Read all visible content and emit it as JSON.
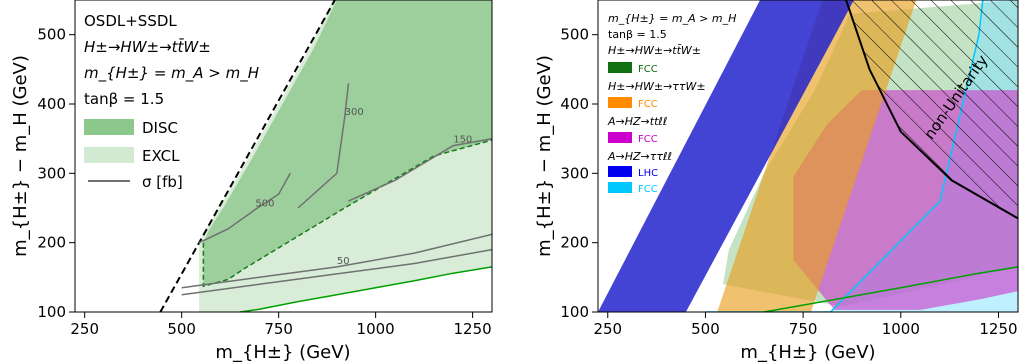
{
  "chart_data": [
    {
      "type": "area",
      "xlabel": "m_{H±} (GeV)",
      "ylabel": "m_{H±} − m_H (GeV)",
      "xlim": [
        225,
        1300
      ],
      "ylim": [
        100,
        550
      ],
      "xticks": [
        250,
        500,
        750,
        1000,
        1250
      ],
      "yticks": [
        100,
        200,
        300,
        400,
        500
      ],
      "legend_position": "top-left",
      "legend_text": [
        "OSDL+SSDL",
        "H±→HW±→tt̄W±",
        "m_{H±} = m_A > m_H",
        "tanβ = 1.5"
      ],
      "legend": [
        {
          "name": "DISC",
          "color": "#8cc88c"
        },
        {
          "name": "EXCL",
          "color": "#d2ead2"
        },
        {
          "name": "σ [fb]",
          "color": "#707070"
        }
      ],
      "excl_region": [
        [
          545,
          140
        ],
        [
          545,
          200
        ],
        [
          560,
          218
        ],
        [
          600,
          253
        ],
        [
          660,
          310
        ],
        [
          700,
          350
        ],
        [
          740,
          390
        ],
        [
          780,
          430
        ],
        [
          830,
          480
        ],
        [
          890,
          550
        ],
        [
          1300,
          550
        ],
        [
          1300,
          165
        ],
        [
          1200,
          156
        ],
        [
          1100,
          145
        ],
        [
          1000,
          135
        ],
        [
          900,
          125
        ],
        [
          800,
          115
        ],
        [
          700,
          104
        ],
        [
          650,
          100
        ],
        [
          545,
          100
        ]
      ],
      "disc_region": [
        [
          556,
          137
        ],
        [
          556,
          200
        ],
        [
          570,
          218
        ],
        [
          610,
          253
        ],
        [
          670,
          310
        ],
        [
          710,
          350
        ],
        [
          750,
          390
        ],
        [
          790,
          430
        ],
        [
          840,
          480
        ],
        [
          900,
          550
        ],
        [
          1300,
          550
        ],
        [
          1300,
          348
        ],
        [
          1150,
          325
        ],
        [
          920,
          250
        ],
        [
          660,
          162
        ],
        [
          620,
          147
        ],
        [
          556,
          137
        ]
      ],
      "contours": [
        {
          "label": "500",
          "points": [
            [
              545,
              200
            ],
            [
              620,
              220
            ],
            [
              690,
              248
            ],
            [
              750,
              270
            ],
            [
              780,
              300
            ]
          ]
        },
        {
          "label": "300",
          "points": [
            [
              800,
              250
            ],
            [
              900,
              300
            ],
            [
              920,
              380
            ],
            [
              930,
              430
            ]
          ]
        },
        {
          "label": "150",
          "points": [
            [
              930,
              260
            ],
            [
              1050,
              290
            ],
            [
              1200,
              340
            ],
            [
              1300,
              350
            ]
          ]
        },
        {
          "label": "50",
          "points": [
            [
              500,
              135
            ],
            [
              700,
              150
            ],
            [
              900,
              165
            ],
            [
              1100,
              185
            ],
            [
              1300,
              212
            ]
          ]
        }
      ],
      "series": [
        {
          "name": "σ contour",
          "x": [
            500,
            700,
            900,
            1100,
            1300
          ],
          "y": [
            125,
            140,
            155,
            170,
            190
          ]
        }
      ]
    },
    {
      "type": "area",
      "xlabel": "m_{H±} (GeV)",
      "ylabel": "m_{H±} − m_H (GeV)",
      "xlim": [
        225,
        1300
      ],
      "ylim": [
        100,
        550
      ],
      "xticks": [
        250,
        500,
        750,
        1000,
        1250
      ],
      "yticks": [
        100,
        200,
        300,
        400,
        500
      ],
      "legend_position": "top-left",
      "legend_text": [
        "m_{H±} = m_A > m_H",
        "tanβ = 1.5"
      ],
      "legend": [
        {
          "group": "H±→HW±→tt̄W±",
          "name": "FCC",
          "color": "#107010"
        },
        {
          "group": "H±→HW±→ττW±",
          "name": "FCC",
          "color": "#ff8c00"
        },
        {
          "group": "A→HZ→ttℓℓ",
          "name": "FCC",
          "color": "#cc00cc"
        },
        {
          "group": "A→HZ→ττℓℓ",
          "name": "LHC",
          "color": "#0000ee"
        },
        {
          "group": "A→HZ→ττℓℓ",
          "name": "FCC",
          "color": "#00c8ff"
        }
      ],
      "annotation": "non-Unitarity",
      "regions": {
        "lhc_blue": [
          [
            225,
            100
          ],
          [
            450,
            100
          ],
          [
            880,
            550
          ],
          [
            640,
            550
          ],
          [
            225,
            100
          ]
        ],
        "orange_fcc": [
          [
            530,
            100
          ],
          [
            770,
            100
          ],
          [
            1040,
            550
          ],
          [
            800,
            550
          ]
        ],
        "magenta_fcc": [
          [
            725,
            175
          ],
          [
            725,
            295
          ],
          [
            810,
            370
          ],
          [
            900,
            420
          ],
          [
            1300,
            420
          ],
          [
            1300,
            130
          ],
          [
            1200,
            118
          ],
          [
            1050,
            103
          ],
          [
            830,
            103
          ]
        ],
        "ttW_fcc": [
          [
            545,
            140
          ],
          [
            560,
            190
          ],
          [
            650,
            300
          ],
          [
            780,
            420
          ],
          [
            870,
            530
          ],
          [
            1300,
            550
          ],
          [
            1300,
            165
          ],
          [
            850,
            108
          ]
        ],
        "cyan_fcc": [
          [
            500,
            100
          ],
          [
            820,
            100
          ],
          [
            1100,
            260
          ],
          [
            1200,
            500
          ],
          [
            1210,
            550
          ]
        ],
        "non_unitarity": [
          [
            860,
            550
          ],
          [
            920,
            450
          ],
          [
            1000,
            360
          ],
          [
            1130,
            290
          ],
          [
            1300,
            235
          ],
          [
            1300,
            550
          ]
        ]
      }
    }
  ]
}
